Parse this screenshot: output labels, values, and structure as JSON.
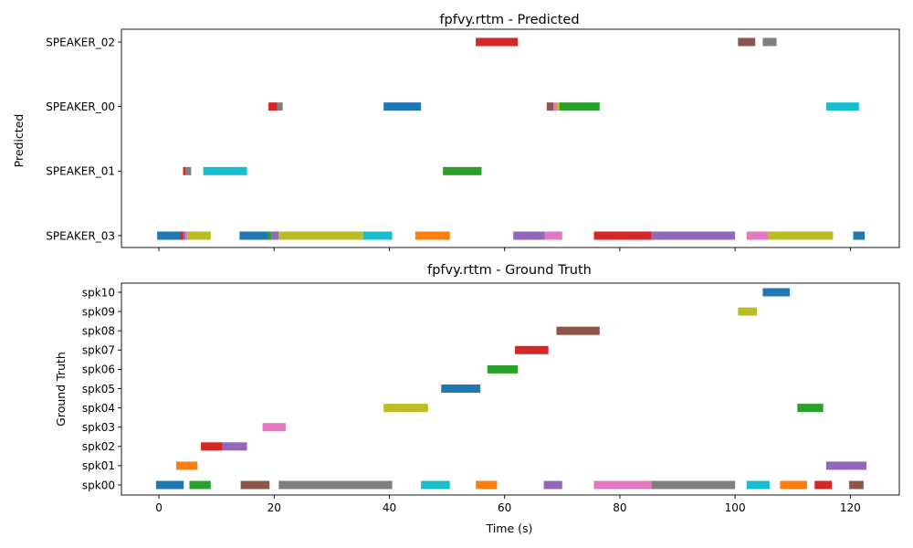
{
  "colors": [
    "#1f77b4",
    "#ff7f0e",
    "#2ca02c",
    "#d62728",
    "#9467bd",
    "#8c564b",
    "#e377c2",
    "#7f7f7f",
    "#bcbd22",
    "#17becf"
  ],
  "chart_data": [
    {
      "type": "timeline",
      "title": "fpfvy.rttm - Predicted",
      "ylabel": "Predicted",
      "xlabel": "",
      "xlim": [
        -6.5,
        128.5
      ],
      "xticks": [
        0,
        20,
        40,
        60,
        80,
        100,
        120
      ],
      "show_xtick_labels": false,
      "categories": [
        "SPEAKER_03",
        "SPEAKER_01",
        "SPEAKER_00",
        "SPEAKER_02"
      ],
      "segments": [
        {
          "row": 0,
          "start": -0.3,
          "end": 3.8,
          "color": "#1f77b4"
        },
        {
          "row": 0,
          "start": 3.8,
          "end": 4.2,
          "color": "#d62728"
        },
        {
          "row": 0,
          "start": 4.2,
          "end": 4.6,
          "color": "#9467bd"
        },
        {
          "row": 0,
          "start": 4.6,
          "end": 5.0,
          "color": "#e377c2"
        },
        {
          "row": 0,
          "start": 5.0,
          "end": 9.0,
          "color": "#bcbd22"
        },
        {
          "row": 0,
          "start": 14.0,
          "end": 19.0,
          "color": "#1f77b4"
        },
        {
          "row": 0,
          "start": 19.0,
          "end": 19.6,
          "color": "#2ca02c"
        },
        {
          "row": 0,
          "start": 19.6,
          "end": 20.8,
          "color": "#9467bd"
        },
        {
          "row": 0,
          "start": 20.8,
          "end": 35.5,
          "color": "#bcbd22"
        },
        {
          "row": 0,
          "start": 35.5,
          "end": 40.5,
          "color": "#17becf"
        },
        {
          "row": 0,
          "start": 44.5,
          "end": 50.5,
          "color": "#ff7f0e"
        },
        {
          "row": 0,
          "start": 61.5,
          "end": 67.0,
          "color": "#9467bd"
        },
        {
          "row": 0,
          "start": 67.0,
          "end": 70.0,
          "color": "#e377c2"
        },
        {
          "row": 0,
          "start": 75.5,
          "end": 85.5,
          "color": "#d62728"
        },
        {
          "row": 0,
          "start": 85.5,
          "end": 100.0,
          "color": "#9467bd"
        },
        {
          "row": 0,
          "start": 102.0,
          "end": 105.8,
          "color": "#e377c2"
        },
        {
          "row": 0,
          "start": 105.8,
          "end": 117.0,
          "color": "#bcbd22"
        },
        {
          "row": 0,
          "start": 120.5,
          "end": 122.5,
          "color": "#1f77b4"
        },
        {
          "row": 1,
          "start": 4.2,
          "end": 4.6,
          "color": "#d62728"
        },
        {
          "row": 1,
          "start": 4.6,
          "end": 5.6,
          "color": "#7f7f7f"
        },
        {
          "row": 1,
          "start": 7.7,
          "end": 15.3,
          "color": "#17becf"
        },
        {
          "row": 1,
          "start": 49.3,
          "end": 56.0,
          "color": "#2ca02c"
        },
        {
          "row": 2,
          "start": 19.0,
          "end": 20.5,
          "color": "#d62728"
        },
        {
          "row": 2,
          "start": 20.5,
          "end": 21.5,
          "color": "#7f7f7f"
        },
        {
          "row": 2,
          "start": 39.0,
          "end": 45.5,
          "color": "#1f77b4"
        },
        {
          "row": 2,
          "start": 67.3,
          "end": 68.5,
          "color": "#8c564b"
        },
        {
          "row": 2,
          "start": 68.5,
          "end": 69.0,
          "color": "#e377c2"
        },
        {
          "row": 2,
          "start": 69.0,
          "end": 69.5,
          "color": "#bcbd22"
        },
        {
          "row": 2,
          "start": 69.5,
          "end": 76.5,
          "color": "#2ca02c"
        },
        {
          "row": 2,
          "start": 115.8,
          "end": 121.5,
          "color": "#17becf"
        },
        {
          "row": 3,
          "start": 55.0,
          "end": 62.3,
          "color": "#d62728"
        },
        {
          "row": 3,
          "start": 100.5,
          "end": 103.5,
          "color": "#8c564b"
        },
        {
          "row": 3,
          "start": 104.8,
          "end": 107.2,
          "color": "#7f7f7f"
        }
      ]
    },
    {
      "type": "timeline",
      "title": "fpfvy.rttm - Ground Truth",
      "ylabel": "Ground Truth",
      "xlabel": "Time (s)",
      "xlim": [
        -6.5,
        128.5
      ],
      "xticks": [
        0,
        20,
        40,
        60,
        80,
        100,
        120
      ],
      "show_xtick_labels": true,
      "categories": [
        "spk00",
        "spk01",
        "spk02",
        "spk03",
        "spk04",
        "spk05",
        "spk06",
        "spk07",
        "spk08",
        "spk09",
        "spk10"
      ],
      "segments": [
        {
          "row": 0,
          "start": -0.5,
          "end": 4.3,
          "color": "#1f77b4"
        },
        {
          "row": 0,
          "start": 5.3,
          "end": 9.0,
          "color": "#2ca02c"
        },
        {
          "row": 0,
          "start": 14.2,
          "end": 19.2,
          "color": "#8c564b"
        },
        {
          "row": 0,
          "start": 20.8,
          "end": 40.5,
          "color": "#7f7f7f"
        },
        {
          "row": 0,
          "start": 45.5,
          "end": 50.5,
          "color": "#17becf"
        },
        {
          "row": 0,
          "start": 55.0,
          "end": 58.7,
          "color": "#ff7f0e"
        },
        {
          "row": 0,
          "start": 66.8,
          "end": 70.0,
          "color": "#9467bd"
        },
        {
          "row": 0,
          "start": 75.5,
          "end": 85.5,
          "color": "#e377c2"
        },
        {
          "row": 0,
          "start": 85.5,
          "end": 100.0,
          "color": "#7f7f7f"
        },
        {
          "row": 0,
          "start": 102.0,
          "end": 106.0,
          "color": "#17becf"
        },
        {
          "row": 0,
          "start": 107.8,
          "end": 112.5,
          "color": "#ff7f0e"
        },
        {
          "row": 0,
          "start": 113.8,
          "end": 116.8,
          "color": "#d62728"
        },
        {
          "row": 0,
          "start": 119.8,
          "end": 122.3,
          "color": "#8c564b"
        },
        {
          "row": 1,
          "start": 3.0,
          "end": 6.7,
          "color": "#ff7f0e"
        },
        {
          "row": 1,
          "start": 115.8,
          "end": 122.8,
          "color": "#9467bd"
        },
        {
          "row": 2,
          "start": 7.3,
          "end": 11.0,
          "color": "#d62728"
        },
        {
          "row": 2,
          "start": 11.0,
          "end": 15.3,
          "color": "#9467bd"
        },
        {
          "row": 3,
          "start": 18.0,
          "end": 22.0,
          "color": "#e377c2"
        },
        {
          "row": 4,
          "start": 39.0,
          "end": 46.7,
          "color": "#bcbd22"
        },
        {
          "row": 4,
          "start": 110.8,
          "end": 115.3,
          "color": "#2ca02c"
        },
        {
          "row": 5,
          "start": 49.0,
          "end": 55.8,
          "color": "#1f77b4"
        },
        {
          "row": 6,
          "start": 57.0,
          "end": 62.3,
          "color": "#2ca02c"
        },
        {
          "row": 7,
          "start": 61.8,
          "end": 67.6,
          "color": "#d62728"
        },
        {
          "row": 8,
          "start": 69.0,
          "end": 76.5,
          "color": "#8c564b"
        },
        {
          "row": 9,
          "start": 100.5,
          "end": 103.8,
          "color": "#bcbd22"
        },
        {
          "row": 10,
          "start": 104.8,
          "end": 109.5,
          "color": "#1f77b4"
        }
      ]
    }
  ]
}
